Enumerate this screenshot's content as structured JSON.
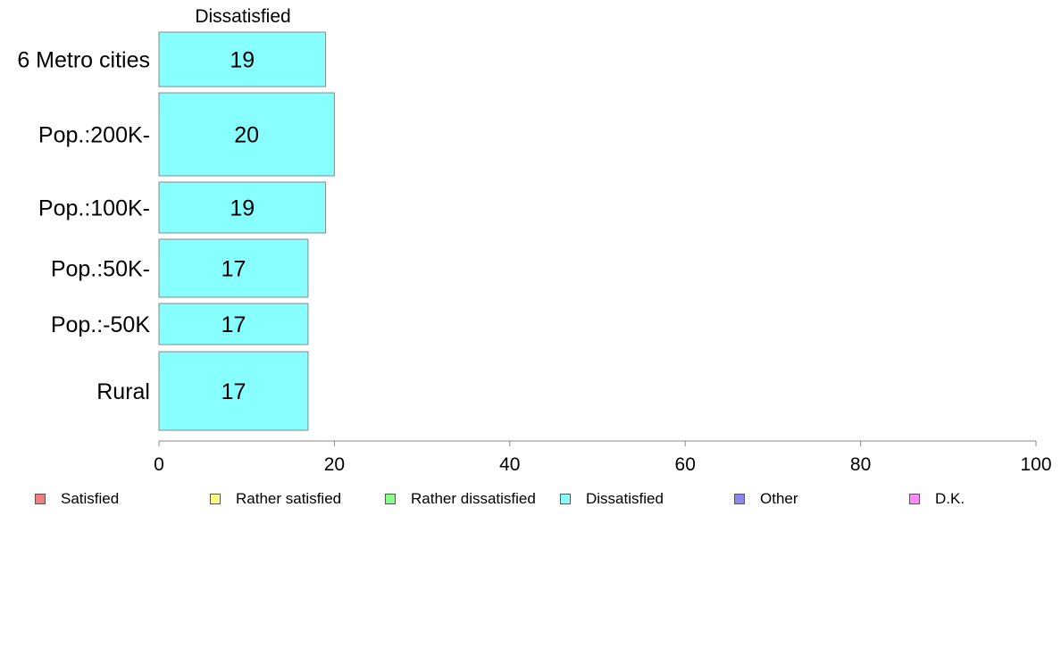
{
  "chart_data": {
    "type": "bar",
    "orientation": "horizontal",
    "title": "Dissatisfied",
    "categories": [
      "6 Metro cities",
      "Pop.:200K-",
      "Pop.:100K-",
      "Pop.:50K-",
      "Pop.:-50K",
      "Rural"
    ],
    "series": [
      {
        "name": "Dissatisfied",
        "values": [
          19,
          20,
          19,
          17,
          17,
          17
        ],
        "color": "#88ffff"
      }
    ],
    "data_labels": [
      "19",
      "20",
      "19",
      "17",
      "17",
      "17"
    ],
    "xlim": [
      0,
      100
    ],
    "xticks": [
      0,
      20,
      40,
      60,
      80,
      100
    ],
    "xtick_labels": [
      "0",
      "20",
      "40",
      "60",
      "80",
      "100"
    ],
    "grid": false,
    "legend_position": "bottom",
    "legend": [
      {
        "label": "Satisfied",
        "color": "#f08080"
      },
      {
        "label": "Rather satisfied",
        "color": "#ffff88"
      },
      {
        "label": "Rather dissatisfied",
        "color": "#88ff88"
      },
      {
        "label": "Dissatisfied",
        "color": "#88ffff"
      },
      {
        "label": "Other",
        "color": "#8888ee"
      },
      {
        "label": "D.K.",
        "color": "#ff88ff"
      }
    ]
  }
}
